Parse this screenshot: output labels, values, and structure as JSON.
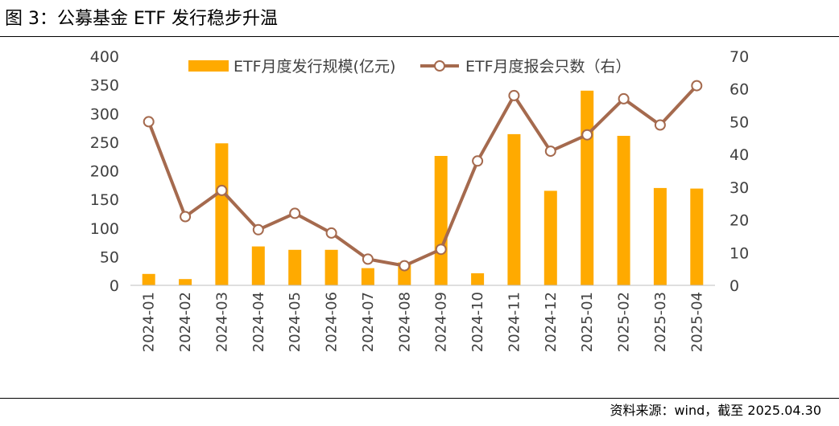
{
  "header": {
    "title": "图 3：公募基金 ETF 发行稳步升温"
  },
  "footer": {
    "source": "资料来源：wind，截至 2025.04.30"
  },
  "colors": {
    "bar": "#FFAA00",
    "line": "#A56A4E",
    "marker_fill": "#FFFFFF"
  },
  "chart_data": {
    "type": "bar+line",
    "categories": [
      "2024-01",
      "2024-02",
      "2024-03",
      "2024-04",
      "2024-05",
      "2024-06",
      "2024-07",
      "2024-08",
      "2024-09",
      "2024-10",
      "2024-11",
      "2024-12",
      "2025-01",
      "2025-02",
      "2025-03",
      "2025-04"
    ],
    "series": [
      {
        "name": "ETF月度发行规模(亿元)",
        "type": "bar",
        "axis": "left",
        "values": [
          20,
          11,
          248,
          68,
          62,
          62,
          30,
          40,
          226,
          21,
          264,
          165,
          340,
          261,
          170,
          169
        ]
      },
      {
        "name": "ETF月度报会只数（右）",
        "type": "line",
        "axis": "right",
        "values": [
          50,
          21,
          29,
          17,
          22,
          16,
          8,
          6,
          11,
          38,
          58,
          41,
          46,
          57,
          49,
          61
        ]
      }
    ],
    "y_left": {
      "lim": [
        0,
        400
      ],
      "ticks": [
        0,
        50,
        100,
        150,
        200,
        250,
        300,
        350,
        400
      ]
    },
    "y_right": {
      "lim": [
        0,
        70
      ],
      "ticks": [
        0,
        10,
        20,
        30,
        40,
        50,
        60,
        70
      ]
    },
    "legend_position": "top-center",
    "grid": false
  }
}
